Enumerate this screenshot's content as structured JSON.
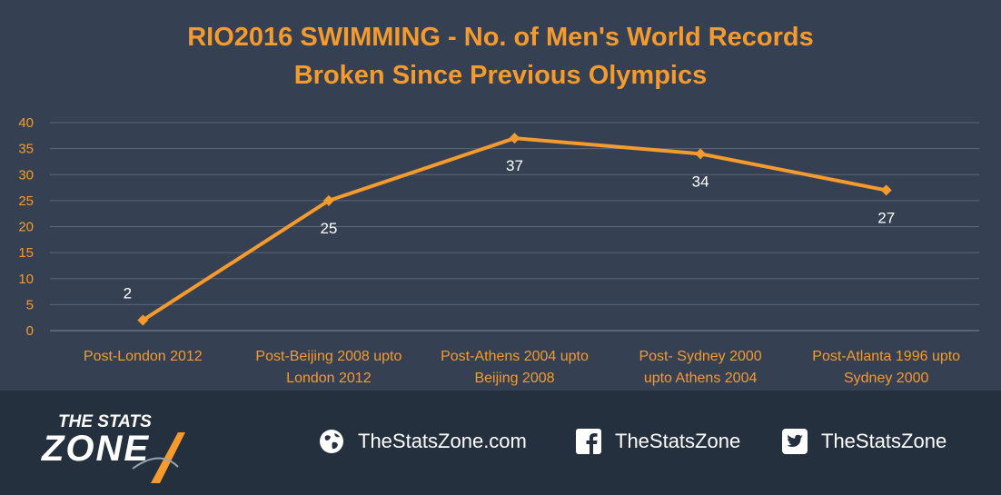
{
  "chart_data": {
    "type": "line",
    "title_lines": [
      "RIO2016 SWIMMING - No. of Men's World Records",
      "Broken Since Previous Olympics"
    ],
    "categories": [
      [
        "Post-London 2012"
      ],
      [
        "Post-Beijing 2008 upto",
        "London 2012"
      ],
      [
        "Post-Athens 2004 upto",
        "Beijing 2008"
      ],
      [
        "Post- Sydney 2000",
        "upto Athens 2004"
      ],
      [
        "Post-Atlanta 1996 upto",
        "Sydney 2000"
      ]
    ],
    "values": [
      2,
      25,
      37,
      34,
      27
    ],
    "data_labels": [
      "2",
      "25",
      "37",
      "34",
      "27"
    ],
    "ylim": [
      0,
      40
    ],
    "yticks": [
      0,
      5,
      10,
      15,
      20,
      25,
      30,
      35,
      40
    ],
    "grid": true,
    "legend": "none",
    "colors": {
      "line": "#f59a2c",
      "axis_text": "#f59a2c",
      "data_label": "#ffffff",
      "grid": "#5a6679"
    }
  },
  "footer": {
    "logo_top": "THE STATS",
    "logo_main": "ZONE",
    "links": [
      {
        "icon": "globe-icon",
        "text": "TheStatsZone.com"
      },
      {
        "icon": "facebook-icon",
        "text": "TheStatsZone"
      },
      {
        "icon": "twitter-icon",
        "text": "TheStatsZone"
      }
    ]
  }
}
